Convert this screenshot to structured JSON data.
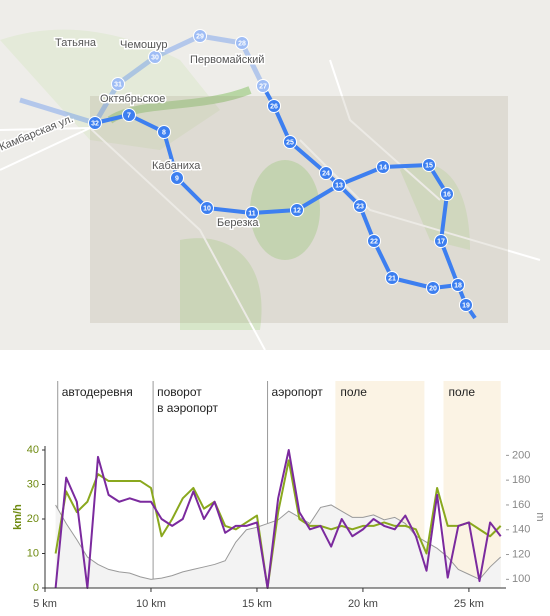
{
  "map": {
    "labels": [
      "Татьяна",
      "Чемошур",
      "Первомайский",
      "Октябрьское",
      "Кабаниха",
      "Березка",
      "Камбарская ул."
    ],
    "waypoints": [
      "7",
      "8",
      "9",
      "10",
      "11",
      "12",
      "13",
      "14",
      "15",
      "16",
      "17",
      "18",
      "19",
      "20",
      "21",
      "22",
      "23",
      "24",
      "25",
      "26",
      "27",
      "28",
      "29",
      "30",
      "31",
      "32"
    ]
  },
  "chart_data": {
    "type": "line",
    "ylabel": "km/h",
    "y2label": "m",
    "x": [
      5.5,
      6,
      6.5,
      7,
      7.5,
      8,
      8.5,
      9,
      9.5,
      10,
      10.5,
      11,
      11.5,
      12,
      12.5,
      13,
      13.5,
      14,
      14.5,
      15,
      15.5,
      16,
      16.5,
      17,
      17.5,
      18,
      18.5,
      19,
      19.5,
      20,
      20.5,
      21,
      21.5,
      22,
      22.5,
      23,
      23.5,
      24,
      24.5,
      25,
      25.5,
      26,
      26.5
    ],
    "series": [
      {
        "type": "area",
        "axis": "y2",
        "color": "#9a9a9a",
        "values": [
          160,
          145,
          132,
          118,
          112,
          108,
          106,
          105,
          102,
          100,
          101,
          103,
          106,
          108,
          110,
          112,
          115,
          130,
          140,
          142,
          145,
          148,
          155,
          150,
          145,
          158,
          160,
          155,
          150,
          150,
          152,
          148,
          150,
          145,
          135,
          130,
          125,
          118,
          108,
          104,
          100,
          110,
          118
        ]
      },
      {
        "type": "line",
        "axis": "y",
        "color": "#8aa81e",
        "values": [
          10,
          28,
          22,
          25,
          33,
          31,
          31,
          31,
          31,
          29,
          15,
          20,
          26,
          29,
          23,
          25,
          18,
          17,
          19,
          21,
          0,
          22,
          37,
          20,
          18,
          18,
          17,
          18,
          17,
          18,
          18,
          19,
          18,
          18,
          17,
          10,
          29,
          18,
          18,
          19,
          17,
          15,
          18
        ]
      },
      {
        "type": "line",
        "axis": "y",
        "color": "#7b2a9e",
        "values": [
          0,
          32,
          25,
          0,
          38,
          27,
          25,
          26,
          25,
          25,
          20,
          18,
          20,
          28,
          20,
          25,
          16,
          18,
          18,
          19,
          0,
          26,
          40,
          22,
          17,
          18,
          12,
          20,
          15,
          17,
          20,
          18,
          17,
          21,
          15,
          5,
          27,
          3,
          18,
          19,
          2,
          19,
          15
        ]
      }
    ],
    "xlim": [
      5,
      26.75
    ],
    "xticks": [
      {
        "value": 5,
        "label": "5 km"
      },
      {
        "value": 10,
        "label": "10 km"
      },
      {
        "value": 15,
        "label": "15 km"
      },
      {
        "value": 20,
        "label": "20 km"
      },
      {
        "value": 25,
        "label": "25 km"
      }
    ],
    "ylim": [
      0,
      60
    ],
    "yticks": [
      0,
      10,
      20,
      30,
      40
    ],
    "y2lim": [
      93,
      260
    ],
    "y2ticks": [
      100,
      120,
      140,
      160,
      180,
      200
    ],
    "annotations": [
      {
        "x": 5.6,
        "label": [
          "автодеревня"
        ]
      },
      {
        "x": 10.1,
        "label": [
          "поворот",
          "в аэропорт"
        ]
      },
      {
        "x": 15.5,
        "label": [
          "аэропорт"
        ]
      }
    ],
    "regions": [
      {
        "x0": 18.7,
        "x1": 22.9,
        "label": "поле",
        "color": "#fbf3e4"
      },
      {
        "x0": 23.8,
        "x1": 26.5,
        "label": "поле",
        "color": "#fbf3e4"
      }
    ]
  }
}
